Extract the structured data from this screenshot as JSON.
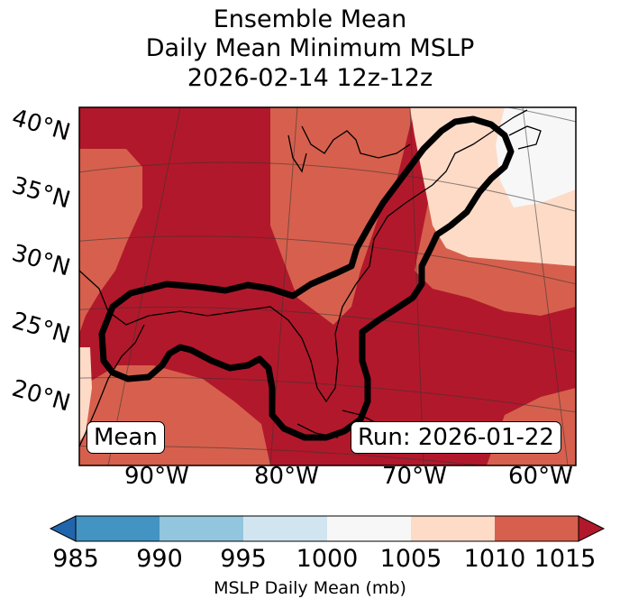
{
  "title": {
    "line1": "Ensemble Mean",
    "line2": "Daily Mean Minimum MSLP",
    "line3": "2026-02-14 12z-12z"
  },
  "map": {
    "latitude_labels": [
      "40°N",
      "35°N",
      "30°N",
      "25°N",
      "20°N"
    ],
    "longitude_labels": [
      "90°W",
      "80°W",
      "70°W",
      "60°W"
    ],
    "mean_label": "Mean",
    "run_label": "Run: 2026-01-22",
    "contour_color": "#000000",
    "coastline_color": "#000000"
  },
  "colorbar": {
    "title": "MSLP Daily Mean (mb)",
    "ticks": [
      "985",
      "990",
      "995",
      "1000",
      "1005",
      "1010",
      "1015"
    ],
    "colors": [
      "#2166ac",
      "#4393c3",
      "#92c5de",
      "#d1e5f0",
      "#f7f7f7",
      "#fddbc7",
      "#d6604d",
      "#b2182b"
    ]
  }
}
